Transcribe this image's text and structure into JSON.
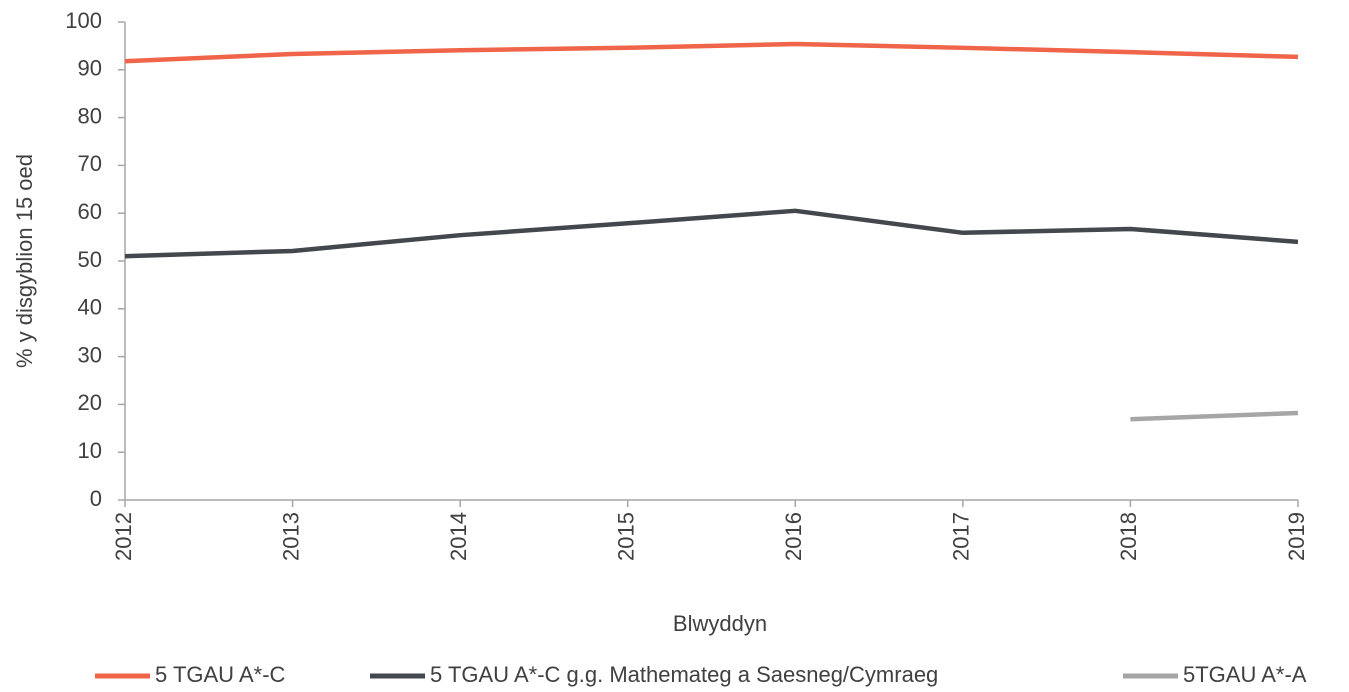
{
  "chart_data": {
    "type": "line",
    "x_label": "Blwyddyn",
    "y_label": "% y disgyblion 15 oed",
    "categories": [
      "2012",
      "2013",
      "2014",
      "2015",
      "2016",
      "2017",
      "2018",
      "2019"
    ],
    "series": [
      {
        "name": "5 TGAU A*-C",
        "color": "#f0654a",
        "values": [
          91.8,
          93.3,
          94.1,
          94.6,
          95.4,
          94.6,
          93.7,
          92.7
        ]
      },
      {
        "name": "5 TGAU A*-C g.g. Mathemateg a Saesneg/Cymraeg",
        "color": "#44474d",
        "values": [
          51.0,
          52.1,
          55.4,
          57.9,
          60.5,
          55.9,
          56.7,
          54.0
        ]
      },
      {
        "name": "5TGAU A*-A",
        "color": "#a6a6a6",
        "values": [
          null,
          null,
          null,
          null,
          null,
          null,
          16.9,
          18.2
        ]
      }
    ],
    "ylim": [
      0,
      100
    ],
    "yticks": [
      0,
      10,
      20,
      30,
      40,
      50,
      60,
      70,
      80,
      90,
      100
    ],
    "grid": false,
    "legend": "bottom"
  }
}
